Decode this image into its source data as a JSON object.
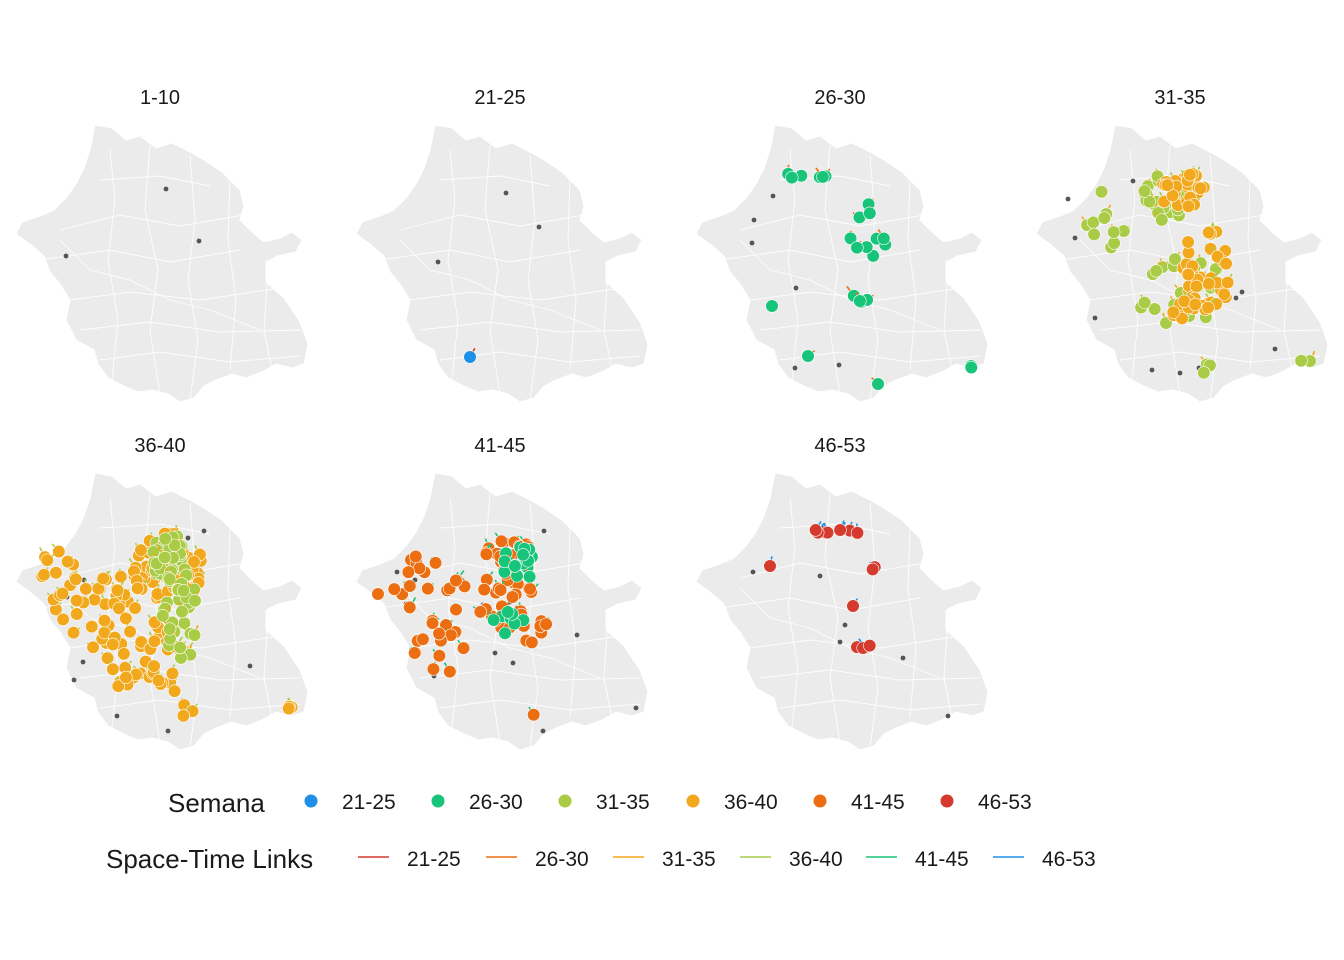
{
  "colors": {
    "map_fill": "#ebebeb",
    "map_border": "#ffffff",
    "reference_point": "#555555",
    "21-25": "#1e90e6",
    "26-30": "#17c47a",
    "31-35": "#a9cb45",
    "36-40": "#f2a81d",
    "41-45": "#eb6f12",
    "46-53": "#d43a2d"
  },
  "panels": [
    {
      "title": "1-10"
    },
    {
      "title": "21-25"
    },
    {
      "title": "26-30"
    },
    {
      "title": "31-35"
    },
    {
      "title": "36-40"
    },
    {
      "title": "41-45"
    },
    {
      "title": "46-53"
    }
  ],
  "legend": {
    "points": {
      "title": "Semana",
      "items": [
        {
          "label": "21-25",
          "color": "#1e90e6"
        },
        {
          "label": "26-30",
          "color": "#17c47a"
        },
        {
          "label": "31-35",
          "color": "#a9cb45"
        },
        {
          "label": "36-40",
          "color": "#f2a81d"
        },
        {
          "label": "41-45",
          "color": "#eb6f12"
        },
        {
          "label": "46-53",
          "color": "#d43a2d"
        }
      ]
    },
    "links": {
      "title": "Space-Time Links",
      "items": [
        {
          "label": "21-25",
          "color": "#d43a2d"
        },
        {
          "label": "26-30",
          "color": "#eb6f12"
        },
        {
          "label": "31-35",
          "color": "#f2a81d"
        },
        {
          "label": "36-40",
          "color": "#a9cb45"
        },
        {
          "label": "41-45",
          "color": "#17c47a"
        },
        {
          "label": "46-53",
          "color": "#1e90e6"
        }
      ]
    }
  }
}
